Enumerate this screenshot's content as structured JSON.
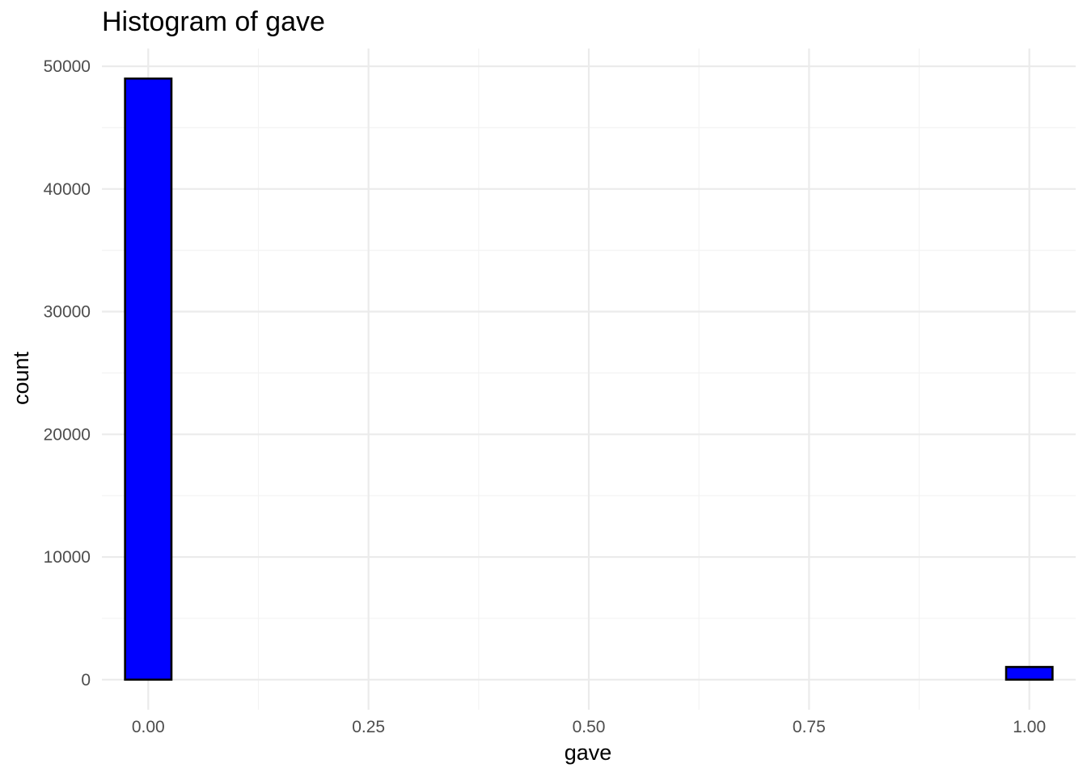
{
  "chart_data": {
    "type": "bar",
    "subtype": "histogram",
    "title": "Histogram of gave",
    "xlabel": "gave",
    "ylabel": "count",
    "bin_width": 0.05263,
    "bins": [
      {
        "center": 0.0,
        "count": 49000
      },
      {
        "center": 0.05263,
        "count": 0
      },
      {
        "center": 0.10526,
        "count": 0
      },
      {
        "center": 0.15789,
        "count": 0
      },
      {
        "center": 0.21053,
        "count": 0
      },
      {
        "center": 0.26316,
        "count": 0
      },
      {
        "center": 0.31579,
        "count": 0
      },
      {
        "center": 0.36842,
        "count": 0
      },
      {
        "center": 0.42105,
        "count": 0
      },
      {
        "center": 0.47368,
        "count": 0
      },
      {
        "center": 0.52632,
        "count": 0
      },
      {
        "center": 0.57895,
        "count": 0
      },
      {
        "center": 0.63158,
        "count": 0
      },
      {
        "center": 0.68421,
        "count": 0
      },
      {
        "center": 0.73684,
        "count": 0
      },
      {
        "center": 0.78947,
        "count": 0
      },
      {
        "center": 0.84211,
        "count": 0
      },
      {
        "center": 0.89474,
        "count": 0
      },
      {
        "center": 0.94737,
        "count": 0
      },
      {
        "center": 1.0,
        "count": 1034
      }
    ],
    "xlim": [
      -0.0526,
      1.0526
    ],
    "ylim": [
      -2450,
      51450
    ],
    "x_ticks": [
      0.0,
      0.25,
      0.5,
      0.75,
      1.0
    ],
    "x_tick_labels": [
      "0.00",
      "0.25",
      "0.50",
      "0.75",
      "1.00"
    ],
    "y_ticks": [
      0,
      10000,
      20000,
      30000,
      40000,
      50000
    ],
    "y_tick_labels": [
      "0",
      "10000",
      "20000",
      "30000",
      "40000",
      "50000"
    ],
    "grid": true,
    "legend": "none",
    "colors": {
      "fill": "#0000ff",
      "outline": "#000000"
    }
  }
}
